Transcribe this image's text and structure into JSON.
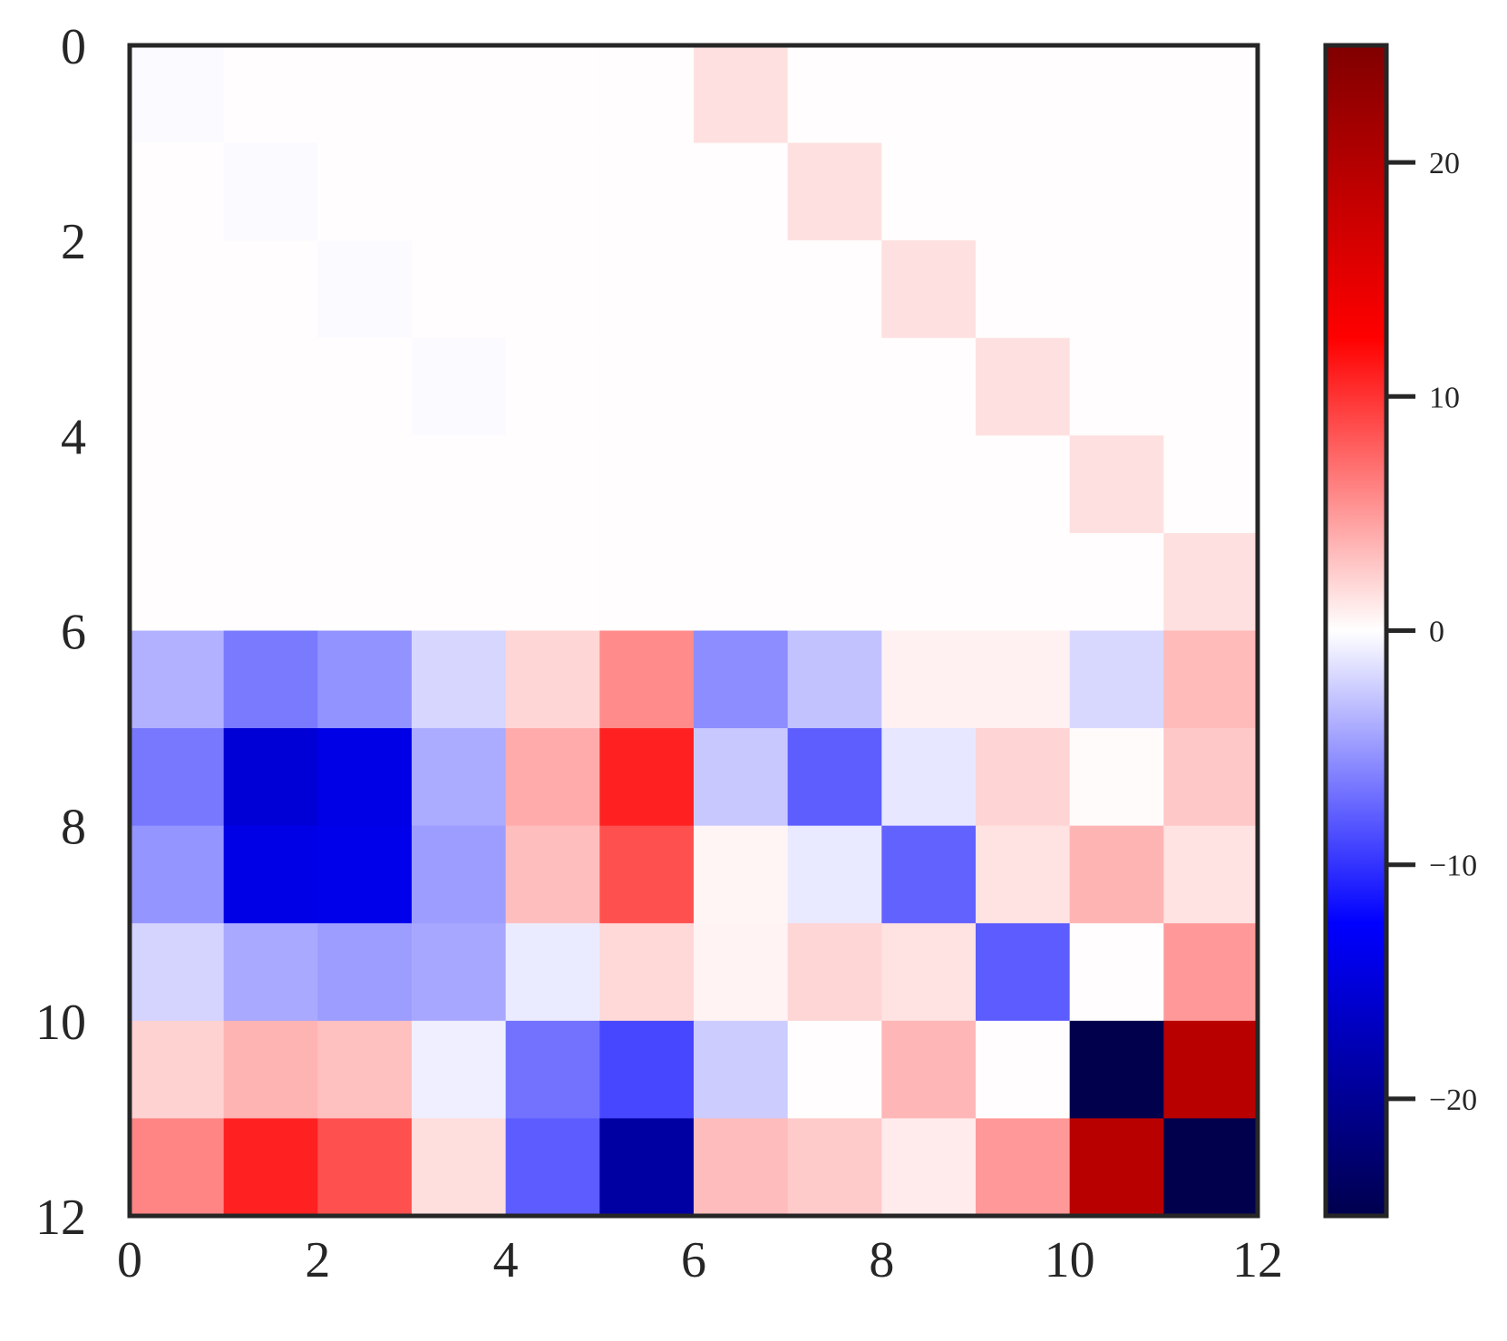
{
  "chart_data": {
    "type": "heatmap",
    "title": "",
    "xlabel": "",
    "ylabel": "",
    "colormap": "seismic",
    "vmin": -25,
    "vmax": 25,
    "xlim": [
      0,
      12
    ],
    "ylim": [
      12,
      0
    ],
    "x_ticks": [
      "0",
      "2",
      "4",
      "6",
      "8",
      "10",
      "12"
    ],
    "y_ticks": [
      "0",
      "2",
      "4",
      "6",
      "8",
      "10",
      "12"
    ],
    "colorbar_ticks": [
      {
        "value": 20,
        "label": "20"
      },
      {
        "value": 10,
        "label": "10"
      },
      {
        "value": 0,
        "label": "0"
      },
      {
        "value": -10,
        "label": "−10"
      },
      {
        "value": -20,
        "label": "−20"
      }
    ],
    "grid": false,
    "values": [
      [
        -0.2,
        0.1,
        0.1,
        0.1,
        0.1,
        0.1,
        1.5,
        0.1,
        0.1,
        0.1,
        0.1,
        0.1
      ],
      [
        0.1,
        -0.2,
        0.1,
        0.1,
        0.1,
        0.1,
        0.1,
        1.5,
        0.1,
        0.1,
        0.1,
        0.1
      ],
      [
        0.1,
        0.1,
        -0.2,
        0.1,
        0.1,
        0.1,
        0.1,
        0.1,
        1.5,
        0.1,
        0.1,
        0.1
      ],
      [
        0.1,
        0.1,
        0.1,
        -0.2,
        0.1,
        0.1,
        0.1,
        0.1,
        0.1,
        1.5,
        0.1,
        0.1
      ],
      [
        0.1,
        0.1,
        0.1,
        0.1,
        0.1,
        0.1,
        0.1,
        0.1,
        0.1,
        0.1,
        1.5,
        0.1
      ],
      [
        0.1,
        0.1,
        0.1,
        0.1,
        0.1,
        0.1,
        0.1,
        0.1,
        0.1,
        0.1,
        0.1,
        1.5
      ],
      [
        -3.8,
        -6.5,
        -5.3,
        -2.0,
        2.0,
        5.7,
        -5.6,
        -3.0,
        0.7,
        0.7,
        -1.9,
        3.4
      ],
      [
        -6.6,
        -15.4,
        -14.2,
        -4.1,
        4.1,
        10.9,
        -2.7,
        -7.9,
        -1.2,
        2.1,
        0.2,
        2.7
      ],
      [
        -5.2,
        -14.2,
        -14.0,
        -4.8,
        3.2,
        8.6,
        0.5,
        -1.1,
        -7.7,
        1.4,
        3.7,
        1.4
      ],
      [
        -2.1,
        -4.2,
        -4.8,
        -4.3,
        -1.0,
        1.9,
        0.6,
        2.0,
        1.4,
        -8.0,
        0.1,
        5.0
      ],
      [
        2.2,
        3.7,
        3.1,
        -0.8,
        -6.9,
        -9.0,
        -2.5,
        0.1,
        3.6,
        0.1,
        -25.0,
        19.5
      ],
      [
        6.0,
        10.9,
        8.6,
        1.6,
        -8.0,
        -19.0,
        3.3,
        2.6,
        1.0,
        5.0,
        19.5,
        -25.0
      ]
    ]
  }
}
